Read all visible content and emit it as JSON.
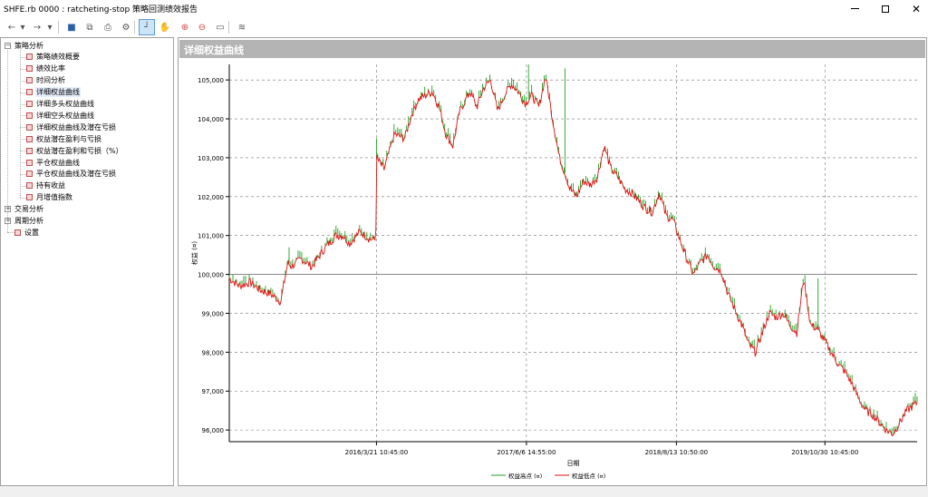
{
  "window": {
    "title": "SHFE.rb 0000 : ratcheting-stop 策略回测绩效报告",
    "minimize_icon": "minimize-icon",
    "maximize_icon": "maximize-icon",
    "close_icon": "close-icon",
    "close_glyph": "✕"
  },
  "toolbar": {
    "buttons": [
      {
        "name": "back-icon",
        "glyph": "←"
      },
      {
        "name": "dropdown-icon",
        "glyph": "▾"
      },
      {
        "name": "forward-icon",
        "glyph": "→"
      },
      {
        "name": "dropdown-icon",
        "glyph": "▾"
      },
      {
        "name": "save-icon",
        "glyph": "■"
      },
      {
        "name": "copy-icon",
        "glyph": "⧉"
      },
      {
        "name": "print-icon",
        "glyph": "⎙"
      },
      {
        "name": "settings-icon",
        "glyph": "⚙"
      },
      {
        "name": "crosshair-icon",
        "glyph": "┘"
      },
      {
        "name": "hand-pan-icon",
        "glyph": "✋"
      },
      {
        "name": "zoom-in-icon",
        "glyph": "⊕"
      },
      {
        "name": "zoom-out-icon",
        "glyph": "⊖"
      },
      {
        "name": "zoom-fit-icon",
        "glyph": "▭"
      },
      {
        "name": "chart-style-icon",
        "glyph": "≋"
      }
    ]
  },
  "tree": {
    "root": {
      "label": "策略分析",
      "expander": "⊟"
    },
    "children": [
      {
        "label": "策略绩效概要"
      },
      {
        "label": "绩效比率"
      },
      {
        "label": "时间分析"
      },
      {
        "label": "详细权益曲线"
      },
      {
        "label": "详细多头权益曲线"
      },
      {
        "label": "详细空头权益曲线"
      },
      {
        "label": "详细权益曲线及潜在亏损"
      },
      {
        "label": "权益潜在盈利与亏损"
      },
      {
        "label": "权益潜在盈利和亏损（%）"
      },
      {
        "label": "平仓权益曲线"
      },
      {
        "label": "平仓权益曲线及潜在亏损"
      },
      {
        "label": "持有收益"
      },
      {
        "label": "月增值指数"
      }
    ],
    "siblings": [
      {
        "label": "交易分析",
        "expander": "⊞"
      },
      {
        "label": "周期分析",
        "expander": "⊞"
      },
      {
        "label": "设置"
      }
    ],
    "selected_index": 3
  },
  "panel": {
    "title": "详细权益曲线"
  },
  "chart_data": {
    "type": "line",
    "title": "",
    "xlabel": "日期",
    "ylabel": "权益 (¤)",
    "ylim": [
      95700,
      105400
    ],
    "yticks": [
      96000,
      97000,
      98000,
      99000,
      100000,
      101000,
      102000,
      103000,
      104000,
      105000
    ],
    "ytick_labels": [
      "96,000",
      "97,000",
      "98,000",
      "99,000",
      "100,000",
      "101,000",
      "102,000",
      "103,000",
      "104,000",
      "105,000"
    ],
    "xticks": [
      {
        "label": "2016/3/21 10:45:00",
        "frac": 0.214
      },
      {
        "label": "2017/6/6 14:55:00",
        "frac": 0.432
      },
      {
        "label": "2018/8/13 10:50:00",
        "frac": 0.65
      },
      {
        "label": "2019/10/30 10:45:00",
        "frac": 0.866
      }
    ],
    "grid": true,
    "legend_position": "bottom",
    "series": [
      {
        "name": "权益高点 (¤)",
        "color": "#22a022"
      },
      {
        "name": "权益低点 (¤)",
        "color": "#e01010"
      }
    ],
    "x_frac": [
      0.0,
      0.015,
      0.03,
      0.045,
      0.06,
      0.075,
      0.085,
      0.09,
      0.105,
      0.12,
      0.14,
      0.155,
      0.165,
      0.175,
      0.19,
      0.205,
      0.213,
      0.214,
      0.225,
      0.24,
      0.255,
      0.265,
      0.275,
      0.285,
      0.295,
      0.305,
      0.315,
      0.325,
      0.335,
      0.35,
      0.36,
      0.37,
      0.38,
      0.39,
      0.4,
      0.41,
      0.42,
      0.43,
      0.44,
      0.45,
      0.46,
      0.47,
      0.48,
      0.49,
      0.495,
      0.505,
      0.515,
      0.525,
      0.535,
      0.545,
      0.555,
      0.565,
      0.575,
      0.585,
      0.595,
      0.605,
      0.615,
      0.625,
      0.635,
      0.645,
      0.655,
      0.665,
      0.675,
      0.685,
      0.695,
      0.705,
      0.715,
      0.725,
      0.735,
      0.745,
      0.755,
      0.765,
      0.775,
      0.785,
      0.795,
      0.805,
      0.815,
      0.825,
      0.835,
      0.845,
      0.855,
      0.865,
      0.875,
      0.885,
      0.895,
      0.905,
      0.915,
      0.925,
      0.935,
      0.945,
      0.955,
      0.965,
      0.975,
      0.985,
      1.0
    ],
    "equity": [
      99900,
      99700,
      99800,
      99600,
      99500,
      99300,
      100300,
      100200,
      100400,
      100200,
      100700,
      101000,
      101000,
      100800,
      101100,
      100900,
      100900,
      103000,
      102700,
      103600,
      103500,
      104100,
      104500,
      104600,
      104700,
      104300,
      103600,
      103300,
      104200,
      104700,
      104300,
      104800,
      105000,
      104200,
      104600,
      104900,
      104700,
      104400,
      104600,
      104300,
      105100,
      104000,
      103000,
      102500,
      102200,
      102000,
      102400,
      102300,
      102500,
      103300,
      102700,
      102500,
      102200,
      102100,
      101900,
      101700,
      101600,
      102100,
      101500,
      101400,
      100900,
      100400,
      100000,
      100300,
      100500,
      100200,
      100100,
      99500,
      99100,
      98700,
      98200,
      98000,
      98500,
      99000,
      98900,
      99000,
      98700,
      98500,
      99900,
      98700,
      98600,
      98300,
      98000,
      97700,
      97500,
      97200,
      96800,
      96500,
      96400,
      96200,
      96000,
      95900,
      96200,
      96500,
      96700
    ],
    "spikes": [
      {
        "frac": 0.087,
        "value": 100700
      },
      {
        "frac": 0.214,
        "value": 103500
      },
      {
        "frac": 0.435,
        "value": 105400
      },
      {
        "frac": 0.488,
        "value": 105300
      },
      {
        "frac": 0.856,
        "value": 99900
      }
    ]
  }
}
